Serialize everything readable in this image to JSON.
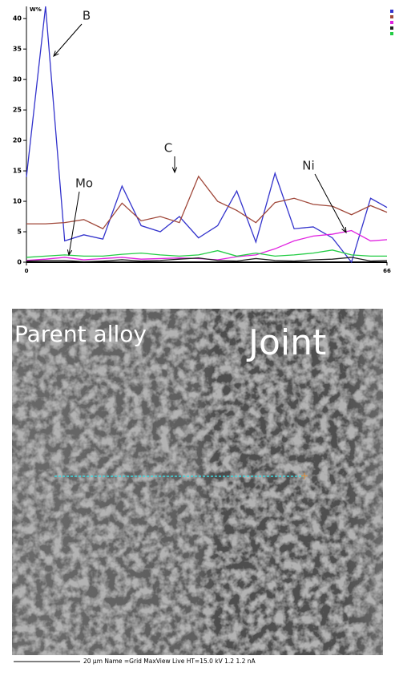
{
  "chart_data": {
    "type": "line",
    "ylabel": "W%",
    "x": [
      0,
      3.5,
      7,
      10.5,
      14,
      17.5,
      21,
      24.5,
      28,
      31.5,
      35,
      38.5,
      42,
      45.5,
      49,
      52.5,
      56,
      59.5,
      63,
      66
    ],
    "xlim": [
      0,
      66
    ],
    "xticks": [
      0,
      66
    ],
    "ylim": [
      0,
      42
    ],
    "yticks": [
      0,
      5,
      10,
      15,
      20,
      25,
      30,
      35,
      40
    ],
    "series": [
      {
        "name": "B",
        "color": "#3333cc",
        "values": [
          14,
          42,
          3.5,
          4.5,
          3.8,
          12.5,
          6,
          5,
          7.5,
          4,
          6,
          11.7,
          3.3,
          14.6,
          5.5,
          5.8,
          4,
          0,
          10.5,
          9
        ]
      },
      {
        "name": "C",
        "color": "#a0483a",
        "values": [
          6.3,
          6.3,
          6.5,
          7,
          5.5,
          9.7,
          6.8,
          7.5,
          6.5,
          14.1,
          10,
          8.5,
          6.5,
          9.8,
          10.5,
          9.5,
          9.2,
          7.8,
          9.3,
          8.2
        ]
      },
      {
        "name": "Ni",
        "color": "#e020e0",
        "values": [
          0.3,
          0.5,
          0.8,
          0.4,
          0.6,
          0.8,
          0.5,
          0.6,
          0.7,
          0.6,
          0.4,
          0.9,
          1.2,
          2.2,
          3.5,
          4.3,
          4.6,
          5.2,
          3.5,
          3.7
        ]
      },
      {
        "name": "Mo",
        "color": "#222222",
        "values": [
          0.2,
          0.3,
          0.3,
          0.1,
          0.2,
          0.4,
          0.2,
          0.3,
          0.5,
          0.7,
          0.3,
          0.2,
          0.6,
          0.3,
          0.2,
          0.4,
          0.5,
          0.8,
          0.2,
          0.3
        ]
      },
      {
        "color": "#22cc44",
        "values": [
          0.8,
          1,
          1.2,
          1,
          1,
          1.3,
          1.5,
          1.2,
          1,
          1.2,
          1.9,
          1,
          1.5,
          1,
          1.2,
          1.5,
          2,
          1.2,
          1,
          1
        ]
      }
    ]
  },
  "image": {
    "labels": [
      "Parent alloy",
      "Joint"
    ],
    "footer": "20 µm   Name =Grid MaxView Live   HT=15.0 kV   1.2 1.2 nA"
  }
}
